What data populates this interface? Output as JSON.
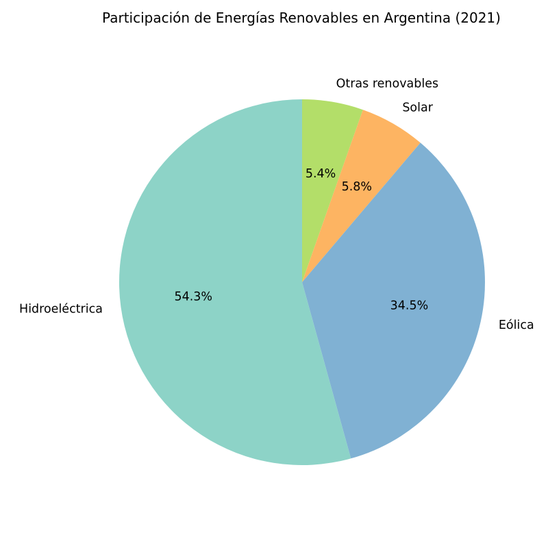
{
  "chart_data": {
    "type": "pie",
    "title": "Participación de Energías Renovables en Argentina (2021)",
    "start_angle_deg": 90,
    "direction": "clockwise",
    "slices": [
      {
        "label": "Otras renovables",
        "value": 5.4,
        "pct_label": "5.4%",
        "color": "#b3de69"
      },
      {
        "label": "Solar",
        "value": 5.8,
        "pct_label": "5.8%",
        "color": "#fdb462"
      },
      {
        "label": "Eólica",
        "value": 34.5,
        "pct_label": "34.5%",
        "color": "#80b1d3"
      },
      {
        "label": "Hidroeléctrica",
        "value": 54.3,
        "pct_label": "54.3%",
        "color": "#8dd3c7"
      }
    ]
  }
}
